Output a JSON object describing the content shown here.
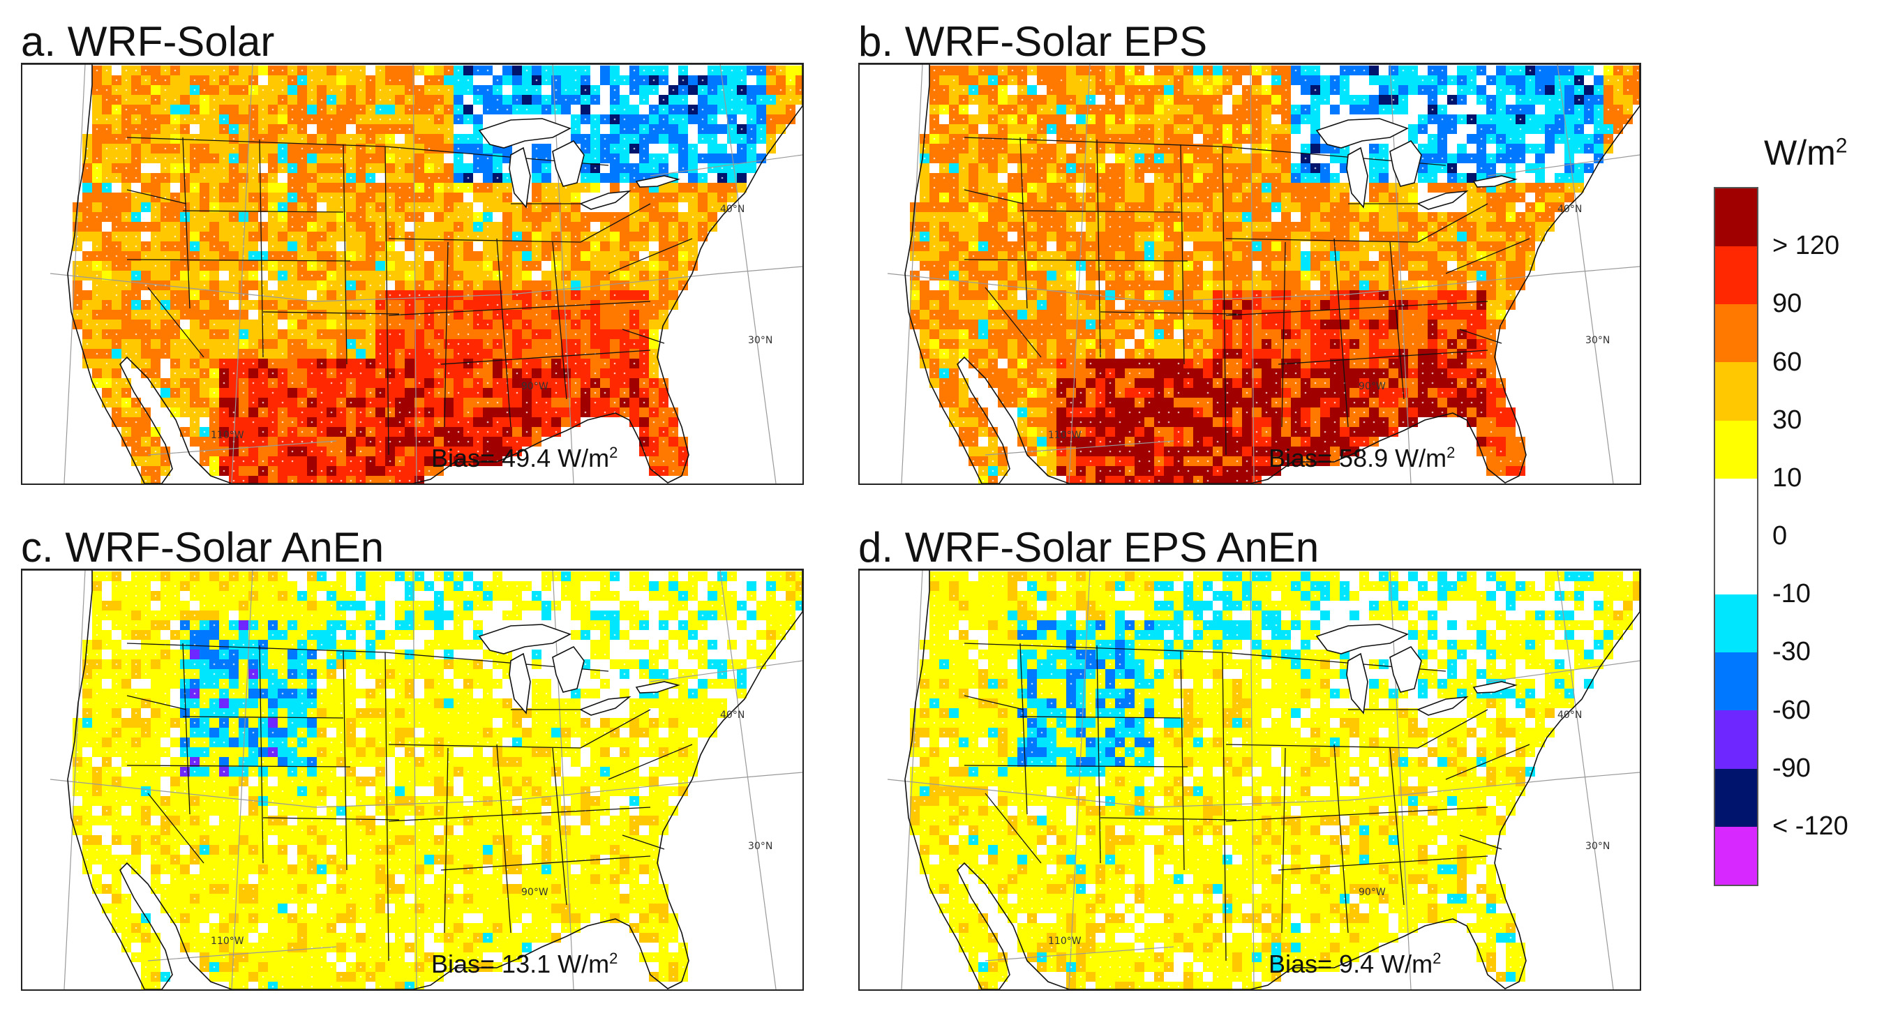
{
  "panels": [
    {
      "title": "a. WRF-Solar",
      "bias_text": "Bias= 49.4 W/m",
      "bias_sup": "2",
      "mean_bias": 49.4,
      "pattern": "high"
    },
    {
      "title": "b. WRF-Solar EPS",
      "bias_text": "Bias= 58.9 W/m",
      "bias_sup": "2",
      "mean_bias": 58.9,
      "pattern": "higher"
    },
    {
      "title": "c. WRF-Solar AnEn",
      "bias_text": "Bias= 13.1 W/m",
      "bias_sup": "2",
      "mean_bias": 13.1,
      "pattern": "low"
    },
    {
      "title": "d. WRF-Solar EPS AnEn",
      "bias_text": "Bias=  9.4 W/m",
      "bias_sup": "2",
      "mean_bias": 9.4,
      "pattern": "lower"
    }
  ],
  "grid_labels": {
    "lat40": "40°N",
    "lat30": "30°N",
    "lon90": "90°W",
    "lon110": "110°W"
  },
  "colorbar": {
    "unit": "W/m",
    "unit_sup": "2",
    "colors": [
      "#a00000",
      "#ff2800",
      "#ff7800",
      "#ffc800",
      "#ffff00",
      "#ffffff",
      "#ffffff",
      "#00e6ff",
      "#0078ff",
      "#6e28ff",
      "#00146e",
      "#d728ff"
    ],
    "labels": [
      "> 120",
      "90",
      "60",
      "30",
      "10",
      "0",
      "-10",
      "-30",
      "-60",
      "-90",
      "< -120"
    ]
  }
}
